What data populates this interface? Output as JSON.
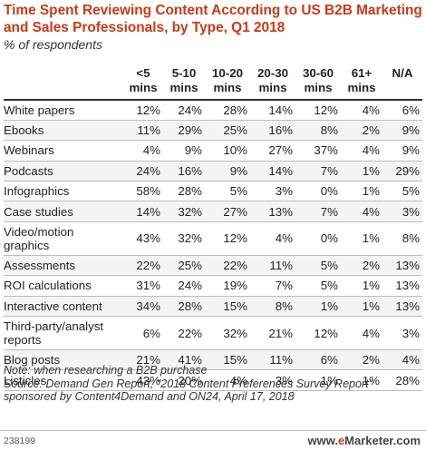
{
  "title": "Time Spent Reviewing Content According to US B2B Marketing and Sales Professionals, by Type, Q1 2018",
  "subtitle": "% of respondents",
  "note": "Note: when researching a B2B purchase",
  "source": "Source: Demand Gen Report, \"2018 Content Preferences Survey Report\" sponsored by Content4Demand and ON24, April 17, 2018",
  "footer_code": "238199",
  "brand": {
    "prefix": "www.",
    "name_a": "e",
    "name_b": "Marketer",
    "suffix": ".com"
  },
  "colors": {
    "title": "#c83a15",
    "row_alt": "#f4f4f4"
  },
  "chart_data": {
    "type": "table",
    "columns": [
      "<5 mins",
      "5-10 mins",
      "10-20 mins",
      "20-30 mins",
      "30-60 mins",
      "61+ mins",
      "N/A"
    ],
    "header_lines": [
      [
        "<5",
        "mins"
      ],
      [
        "5-10",
        "mins"
      ],
      [
        "10-20",
        "mins"
      ],
      [
        "20-30",
        "mins"
      ],
      [
        "30-60",
        "mins"
      ],
      [
        "61+",
        "mins"
      ],
      [
        "N/A",
        ""
      ]
    ],
    "rows": [
      {
        "label": "White papers",
        "values": [
          "12%",
          "24%",
          "28%",
          "14%",
          "12%",
          "4%",
          "6%"
        ]
      },
      {
        "label": "Ebooks",
        "values": [
          "11%",
          "29%",
          "25%",
          "16%",
          "8%",
          "2%",
          "9%"
        ]
      },
      {
        "label": "Webinars",
        "values": [
          "4%",
          "9%",
          "10%",
          "27%",
          "37%",
          "4%",
          "9%"
        ]
      },
      {
        "label": "Podcasts",
        "values": [
          "24%",
          "16%",
          "9%",
          "14%",
          "7%",
          "1%",
          "29%"
        ]
      },
      {
        "label": "Infographics",
        "values": [
          "58%",
          "28%",
          "5%",
          "3%",
          "0%",
          "1%",
          "5%"
        ]
      },
      {
        "label": "Case studies",
        "values": [
          "14%",
          "32%",
          "27%",
          "13%",
          "7%",
          "4%",
          "3%"
        ]
      },
      {
        "label": "Video/motion graphics",
        "lines": [
          "Video/motion",
          "graphics"
        ],
        "values": [
          "43%",
          "32%",
          "12%",
          "4%",
          "0%",
          "1%",
          "8%"
        ]
      },
      {
        "label": "Assessments",
        "values": [
          "22%",
          "25%",
          "22%",
          "11%",
          "5%",
          "2%",
          "13%"
        ]
      },
      {
        "label": "ROI calculations",
        "values": [
          "31%",
          "24%",
          "19%",
          "7%",
          "5%",
          "1%",
          "13%"
        ]
      },
      {
        "label": "Interactive content",
        "values": [
          "34%",
          "28%",
          "15%",
          "8%",
          "1%",
          "1%",
          "13%"
        ]
      },
      {
        "label": "Third-party/analyst reports",
        "lines": [
          "Third-party/analyst",
          "reports"
        ],
        "values": [
          "6%",
          "22%",
          "32%",
          "21%",
          "12%",
          "4%",
          "3%"
        ]
      },
      {
        "label": "Blog posts",
        "values": [
          "21%",
          "41%",
          "15%",
          "11%",
          "6%",
          "2%",
          "4%"
        ]
      },
      {
        "label": "Listicles",
        "values": [
          "43%",
          "20%",
          "4%",
          "3%",
          "1%",
          "1%",
          "28%"
        ]
      }
    ]
  }
}
